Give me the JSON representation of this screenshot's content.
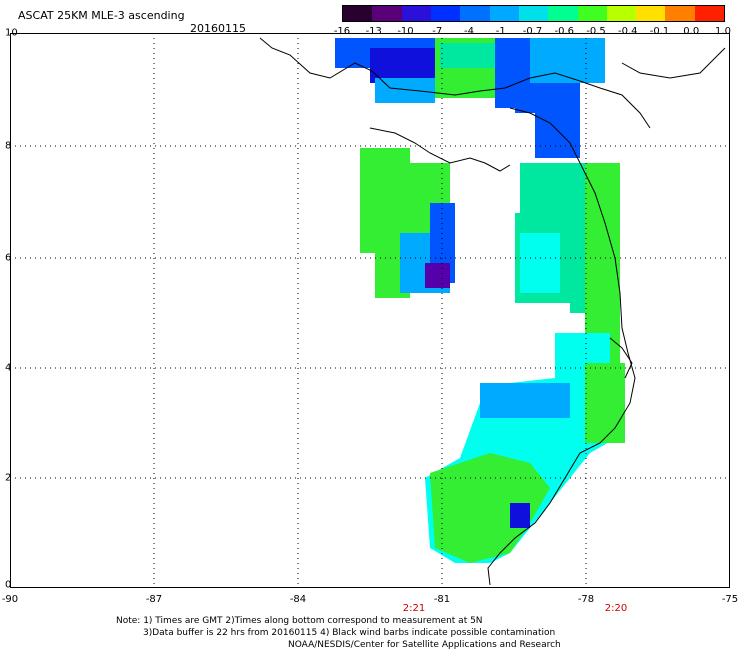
{
  "title": "ASCAT 25KM MLE-3 ascending",
  "date": "20160115",
  "colorbar": {
    "labels": [
      "-16",
      "-13",
      "-10",
      "-7",
      "-4",
      "-1",
      "-0.7",
      "-0.6",
      "-0.5",
      "-0.4",
      "-0.1",
      "0.0",
      "1.0"
    ],
    "colors": [
      "#2a0030",
      "#5a0078",
      "#2a10d8",
      "#0030ff",
      "#0070ff",
      "#00a8ff",
      "#00e0e8",
      "#00ff90",
      "#40ff20",
      "#b8ff00",
      "#ffe000",
      "#ff8000",
      "#ff2000"
    ]
  },
  "axes": {
    "y_ticks": [
      "10",
      "8",
      "6",
      "4",
      "2",
      "0"
    ],
    "x_ticks": [
      "-90",
      "-87",
      "-84",
      "-81",
      "-78",
      "-75"
    ]
  },
  "pass_times": [
    "2:21",
    "2:20"
  ],
  "notes": [
    "Note: 1) Times are GMT 2)Times along bottom correspond to measurement at 5N",
    "3)Data buffer is 22 hrs from 20160115 4) Black wind barbs indicate possible contamination",
    "NOAA/NESDIS/Center for Satellite Applications and Research"
  ],
  "map_colors": {
    "green": "#33ee33",
    "mint": "#00e8a0",
    "cyan": "#00ffee",
    "sky": "#00aaff",
    "blue": "#0055ff",
    "navy": "#1010dd",
    "purple": "#5500aa",
    "coast": "#000000",
    "grid": "#000000"
  }
}
